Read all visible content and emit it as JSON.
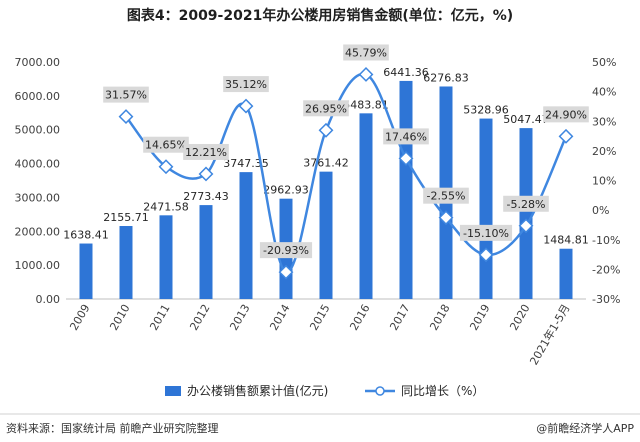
{
  "title": "图表4：2009-2021年办公楼用房销售金额(单位：亿元，%)",
  "footer": {
    "source": "资料来源：国家统计局 前瞻产业研究院整理",
    "brand": "@前瞻经济学人APP"
  },
  "colors": {
    "bar": "#2e75d6",
    "line": "#3f87e0",
    "label_box": "#d9d9d9",
    "axis": "#bfbfbf",
    "title": "#1f1f1f"
  },
  "chart_data": {
    "type": "bar",
    "categories": [
      "2009",
      "2010",
      "2011",
      "2012",
      "2013",
      "2014",
      "2015",
      "2016",
      "2017",
      "2018",
      "2019",
      "2020",
      "2021年1-5月"
    ],
    "series": [
      {
        "name": "办公楼销售额累计值(亿元)",
        "type": "bar",
        "axis": "left",
        "values": [
          1638.41,
          2155.71,
          2471.58,
          2773.43,
          3747.35,
          2962.93,
          3761.42,
          5483.81,
          6441.36,
          6276.83,
          5328.96,
          5047.47,
          1484.81
        ],
        "labels": [
          "1638.41",
          "2155.71",
          "2471.58",
          "2773.43",
          "3747.35",
          "2962.93",
          "3761.42",
          "5483.81",
          "6441.36",
          "6276.83",
          "5328.96",
          "5047.47",
          "1484.81"
        ]
      },
      {
        "name": "同比增长（%）",
        "type": "line",
        "axis": "right",
        "values": [
          null,
          31.57,
          14.65,
          12.21,
          35.12,
          -20.93,
          26.95,
          45.79,
          17.46,
          -2.55,
          -15.1,
          -5.28,
          24.9
        ],
        "labels": [
          "",
          "31.57%",
          "14.65%",
          "12.21%",
          "35.12%",
          "-20.93%",
          "26.95%",
          "45.79%",
          "17.46%",
          "-2.55%",
          "-15.10%",
          "-5.28%",
          "24.90%"
        ]
      }
    ],
    "y_left": {
      "ylim": [
        0,
        7000
      ],
      "ticks": [
        0,
        1000,
        2000,
        3000,
        4000,
        5000,
        6000,
        7000
      ],
      "tick_labels": [
        "0.00",
        "1000.00",
        "2000.00",
        "3000.00",
        "4000.00",
        "5000.00",
        "6000.00",
        "7000.00"
      ]
    },
    "y_right": {
      "ylim": [
        -30,
        50
      ],
      "ticks": [
        -30,
        -20,
        -10,
        0,
        10,
        20,
        30,
        40,
        50
      ],
      "tick_labels": [
        "-30%",
        "-20%",
        "-10%",
        "0%",
        "10%",
        "20%",
        "30%",
        "40%",
        "50%"
      ]
    },
    "grid": false,
    "legend_position": "bottom",
    "legend": [
      {
        "name": "办公楼销售额累计值(亿元)",
        "marker": "bar"
      },
      {
        "name": "同比增长（%）",
        "marker": "line"
      }
    ]
  }
}
